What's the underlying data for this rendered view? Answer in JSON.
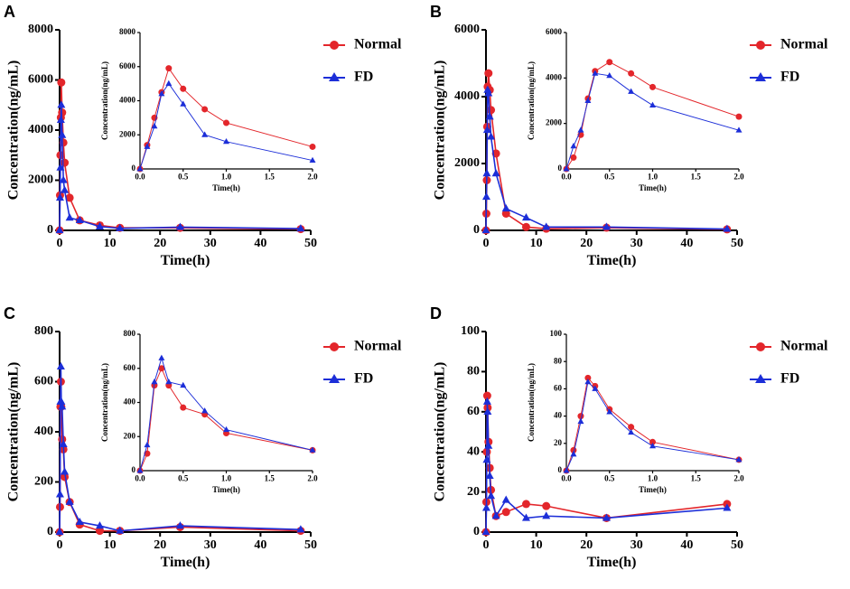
{
  "chart_data": [
    {
      "type": "line",
      "panel": "A",
      "xlabel": "Time(h)",
      "ylabel": "Concentration(ng/mL)",
      "x": [
        0,
        0.083,
        0.167,
        0.25,
        0.333,
        0.5,
        0.75,
        1,
        2,
        4,
        8,
        12,
        24,
        48
      ],
      "series": [
        {
          "name": "Normal",
          "color": "#e3262b",
          "marker": "circle",
          "values": [
            0,
            1400,
            3000,
            4500,
            5900,
            4700,
            3500,
            2700,
            1300,
            400,
            200,
            100,
            100,
            50
          ]
        },
        {
          "name": "FD",
          "color": "#1c2ed8",
          "marker": "triangle",
          "values": [
            0,
            1300,
            2500,
            4400,
            5000,
            3800,
            2000,
            1600,
            500,
            400,
            150,
            80,
            130,
            70
          ]
        }
      ],
      "xlim": [
        0,
        50
      ],
      "xticks": [
        0,
        10,
        20,
        30,
        40,
        50
      ],
      "ylim": [
        0,
        8000
      ],
      "yticks": [
        0,
        2000,
        4000,
        6000,
        8000
      ]
    },
    {
      "type": "line",
      "xlabel": "Time(h)",
      "ylabel": "Concentration(ng/mL)",
      "x": [
        0,
        0.083,
        0.167,
        0.25,
        0.333,
        0.5,
        0.75,
        1,
        2
      ],
      "series": [
        {
          "color": "#e3262b",
          "marker": "circle",
          "values": [
            0,
            1400,
            3000,
            4500,
            5900,
            4700,
            3500,
            2700,
            1300
          ]
        },
        {
          "color": "#1c2ed8",
          "marker": "triangle",
          "values": [
            0,
            1300,
            2500,
            4400,
            5000,
            3800,
            2000,
            1600,
            500
          ]
        }
      ],
      "xlim": [
        0,
        2
      ],
      "xticks": [
        {
          "value": 0,
          "label": "0.0"
        },
        0.5,
        {
          "value": 1,
          "label": "1.0"
        },
        1.5,
        {
          "value": 2,
          "label": "2.0"
        }
      ],
      "ylim": [
        0,
        8000
      ],
      "yticks": [
        0,
        2000,
        4000,
        6000,
        8000
      ]
    },
    {
      "type": "line",
      "panel": "B",
      "xlabel": "Time(h)",
      "ylabel": "Concentration(ng/mL)",
      "x": [
        0,
        0.083,
        0.167,
        0.25,
        0.333,
        0.5,
        0.75,
        1,
        2,
        4,
        8,
        12,
        24,
        48
      ],
      "series": [
        {
          "name": "Normal",
          "color": "#e3262b",
          "marker": "circle",
          "values": [
            0,
            500,
            1500,
            3100,
            4300,
            4700,
            4200,
            3600,
            2300,
            500,
            100,
            50,
            80,
            30
          ]
        },
        {
          "name": "FD",
          "color": "#1c2ed8",
          "marker": "triangle",
          "values": [
            0,
            1000,
            1700,
            3000,
            4200,
            4100,
            3400,
            2800,
            1700,
            650,
            380,
            100,
            100,
            40
          ]
        }
      ],
      "xlim": [
        0,
        50
      ],
      "xticks": [
        0,
        10,
        20,
        30,
        40,
        50
      ],
      "ylim": [
        0,
        6000
      ],
      "yticks": [
        0,
        2000,
        4000,
        6000
      ]
    },
    {
      "type": "line",
      "xlabel": "Time(h)",
      "ylabel": "Concentration(ng/mL)",
      "x": [
        0,
        0.083,
        0.167,
        0.25,
        0.333,
        0.5,
        0.75,
        1,
        2
      ],
      "series": [
        {
          "color": "#e3262b",
          "marker": "circle",
          "values": [
            0,
            500,
            1500,
            3100,
            4300,
            4700,
            4200,
            3600,
            2300
          ]
        },
        {
          "color": "#1c2ed8",
          "marker": "triangle",
          "values": [
            0,
            1000,
            1700,
            3000,
            4200,
            4100,
            3400,
            2800,
            1700
          ]
        }
      ],
      "xlim": [
        0,
        2
      ],
      "xticks": [
        {
          "value": 0,
          "label": "0.0"
        },
        0.5,
        {
          "value": 1,
          "label": "1.0"
        },
        1.5,
        {
          "value": 2,
          "label": "2.0"
        }
      ],
      "ylim": [
        0,
        6000
      ],
      "yticks": [
        0,
        2000,
        4000,
        6000
      ]
    },
    {
      "type": "line",
      "panel": "C",
      "xlabel": "Time(h)",
      "ylabel": "Concentration(ng/mL)",
      "x": [
        0,
        0.083,
        0.167,
        0.25,
        0.333,
        0.5,
        0.75,
        1,
        2,
        4,
        8,
        12,
        24,
        48
      ],
      "series": [
        {
          "name": "Normal",
          "color": "#e3262b",
          "marker": "circle",
          "values": [
            0,
            100,
            500,
            600,
            500,
            370,
            330,
            220,
            120,
            30,
            5,
            5,
            20,
            5
          ]
        },
        {
          "name": "FD",
          "color": "#1c2ed8",
          "marker": "triangle",
          "values": [
            0,
            150,
            520,
            660,
            520,
            500,
            350,
            240,
            120,
            40,
            25,
            5,
            25,
            10
          ]
        }
      ],
      "xlim": [
        0,
        50
      ],
      "xticks": [
        0,
        10,
        20,
        30,
        40,
        50
      ],
      "ylim": [
        0,
        800
      ],
      "yticks": [
        0,
        200,
        400,
        600,
        800
      ]
    },
    {
      "type": "line",
      "xlabel": "Time(h)",
      "ylabel": "Concentration(ng/mL)",
      "x": [
        0,
        0.083,
        0.167,
        0.25,
        0.333,
        0.5,
        0.75,
        1,
        2
      ],
      "series": [
        {
          "color": "#e3262b",
          "marker": "circle",
          "values": [
            0,
            100,
            500,
            600,
            500,
            370,
            330,
            220,
            120
          ]
        },
        {
          "color": "#1c2ed8",
          "marker": "triangle",
          "values": [
            0,
            150,
            520,
            660,
            520,
            500,
            350,
            240,
            120
          ]
        }
      ],
      "xlim": [
        0,
        2
      ],
      "xticks": [
        {
          "value": 0,
          "label": "0.0"
        },
        0.5,
        {
          "value": 1,
          "label": "1.0"
        },
        1.5,
        {
          "value": 2,
          "label": "2.0"
        }
      ],
      "ylim": [
        0,
        800
      ],
      "yticks": [
        0,
        200,
        400,
        600,
        800
      ]
    },
    {
      "type": "line",
      "panel": "D",
      "xlabel": "Time(h)",
      "ylabel": "Concentration(ng/mL)",
      "x": [
        0,
        0.083,
        0.167,
        0.25,
        0.333,
        0.5,
        0.75,
        1,
        2,
        4,
        8,
        12,
        24,
        48
      ],
      "series": [
        {
          "name": "Normal",
          "color": "#e3262b",
          "marker": "circle",
          "values": [
            0,
            15,
            40,
            68,
            62,
            45,
            32,
            21,
            8,
            10,
            14,
            13,
            7,
            14
          ]
        },
        {
          "name": "FD",
          "color": "#1c2ed8",
          "marker": "triangle",
          "values": [
            0,
            12,
            36,
            65,
            60,
            43,
            28,
            18,
            8,
            16,
            7,
            8,
            7,
            12
          ]
        }
      ],
      "xlim": [
        0,
        50
      ],
      "xticks": [
        0,
        10,
        20,
        30,
        40,
        50
      ],
      "ylim": [
        0,
        100
      ],
      "yticks": [
        0,
        20,
        40,
        60,
        80,
        100
      ]
    },
    {
      "type": "line",
      "xlabel": "Time(h)",
      "ylabel": "Concentration(ng/mL)",
      "x": [
        0,
        0.083,
        0.167,
        0.25,
        0.333,
        0.5,
        0.75,
        1,
        2
      ],
      "series": [
        {
          "color": "#e3262b",
          "marker": "circle",
          "values": [
            0,
            15,
            40,
            68,
            62,
            45,
            32,
            21,
            8
          ]
        },
        {
          "color": "#1c2ed8",
          "marker": "triangle",
          "values": [
            0,
            12,
            36,
            65,
            60,
            43,
            28,
            18,
            8
          ]
        }
      ],
      "xlim": [
        0,
        2
      ],
      "xticks": [
        {
          "value": 0,
          "label": "0.0"
        },
        0.5,
        {
          "value": 1,
          "label": "1.0"
        },
        1.5,
        {
          "value": 2,
          "label": "2.0"
        }
      ],
      "ylim": [
        0,
        100
      ],
      "yticks": [
        0,
        20,
        40,
        60,
        80,
        100
      ]
    }
  ]
}
